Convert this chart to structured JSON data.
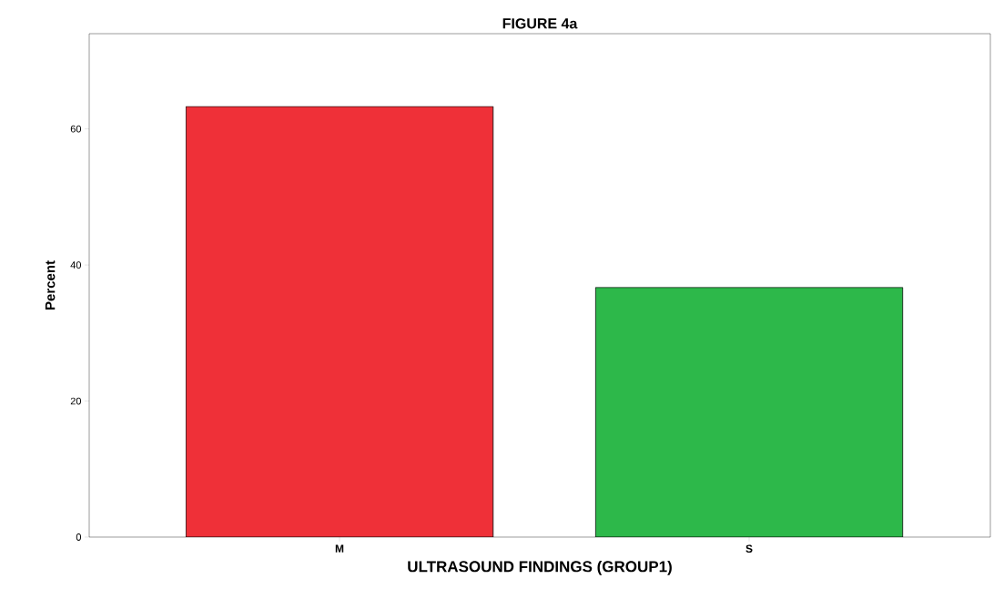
{
  "chart_data": {
    "type": "bar",
    "title": "FIGURE 4a",
    "xlabel": "ULTRASOUND  FINDINGS (GROUP1)",
    "ylabel": "Percent",
    "categories": [
      "M",
      "S"
    ],
    "values": [
      63.3,
      36.7
    ],
    "colors": [
      "#ef3038",
      "#2db84a"
    ],
    "ylim": [
      0,
      74
    ],
    "yticks": [
      0,
      20,
      40,
      60
    ]
  }
}
